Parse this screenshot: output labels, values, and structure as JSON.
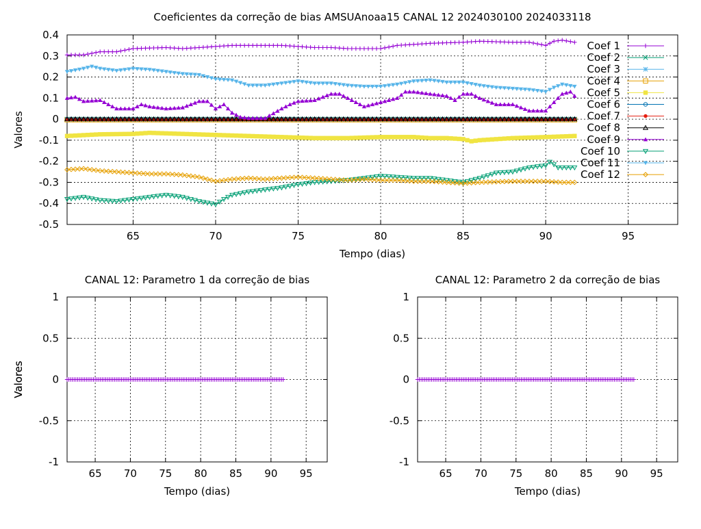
{
  "chart_data": [
    {
      "type": "line",
      "title": "Coeficientes da correção de bias AMSUAnoaa15 CANAL 12 2024030100 2024033118",
      "xlabel": "Tempo (dias)",
      "ylabel": "Valores",
      "xlim": [
        61,
        98
      ],
      "ylim": [
        -0.5,
        0.4
      ],
      "xticks": [
        65,
        70,
        75,
        80,
        85,
        90,
        95
      ],
      "yticks": [
        -0.5,
        -0.4,
        -0.3,
        -0.2,
        -0.1,
        0,
        0.1,
        0.2,
        0.3,
        0.4
      ],
      "ytick_labels": [
        "-0.5",
        "-0.4",
        "-0.3",
        "-0.2",
        "-0.1",
        "0",
        "0.1",
        "0.2",
        "0.3",
        "0.4"
      ],
      "grid": true,
      "legend_position": "right",
      "x_range": [
        61,
        91.75
      ],
      "x_step": 0.25,
      "series": [
        {
          "name": "Coef 1",
          "color": "#9400d3",
          "marker": "plus",
          "keypoints": [
            [
              61,
              0.305
            ],
            [
              62,
              0.305
            ],
            [
              63,
              0.32
            ],
            [
              64,
              0.32
            ],
            [
              65,
              0.335
            ],
            [
              67,
              0.34
            ],
            [
              68,
              0.335
            ],
            [
              70,
              0.345
            ],
            [
              71,
              0.35
            ],
            [
              73,
              0.35
            ],
            [
              74,
              0.35
            ],
            [
              75,
              0.345
            ],
            [
              76,
              0.34
            ],
            [
              77,
              0.34
            ],
            [
              78,
              0.335
            ],
            [
              80,
              0.335
            ],
            [
              81,
              0.35
            ],
            [
              82,
              0.355
            ],
            [
              83,
              0.36
            ],
            [
              85,
              0.365
            ],
            [
              86,
              0.37
            ],
            [
              88,
              0.365
            ],
            [
              89,
              0.365
            ],
            [
              90,
              0.35
            ],
            [
              90.5,
              0.37
            ],
            [
              91,
              0.375
            ],
            [
              91.75,
              0.365
            ]
          ]
        },
        {
          "name": "Coef 2",
          "color": "#009e73",
          "marker": "x",
          "keypoints": [
            [
              61,
              0.0
            ],
            [
              91.75,
              0.0
            ]
          ]
        },
        {
          "name": "Coef 3",
          "color": "#56b4e9",
          "marker": "star",
          "keypoints": [
            [
              61,
              -0.002
            ],
            [
              91.75,
              -0.002
            ]
          ]
        },
        {
          "name": "Coef 4",
          "color": "#e69f00",
          "marker": "square-open",
          "keypoints": [
            [
              61,
              -0.003
            ],
            [
              91.75,
              -0.003
            ]
          ]
        },
        {
          "name": "Coef 5",
          "color": "#f0e442",
          "marker": "square-filled",
          "keypoints": [
            [
              61,
              -0.08
            ],
            [
              63,
              -0.072
            ],
            [
              65,
              -0.07
            ],
            [
              66,
              -0.065
            ],
            [
              68,
              -0.07
            ],
            [
              70,
              -0.075
            ],
            [
              72,
              -0.08
            ],
            [
              74,
              -0.085
            ],
            [
              76,
              -0.09
            ],
            [
              78,
              -0.09
            ],
            [
              80,
              -0.085
            ],
            [
              82,
              -0.085
            ],
            [
              83,
              -0.09
            ],
            [
              84,
              -0.09
            ],
            [
              85,
              -0.095
            ],
            [
              85.5,
              -0.105
            ],
            [
              86,
              -0.1
            ],
            [
              88,
              -0.09
            ],
            [
              90,
              -0.085
            ],
            [
              91.75,
              -0.08
            ]
          ]
        },
        {
          "name": "Coef 6",
          "color": "#0072b2",
          "marker": "circle-open",
          "keypoints": [
            [
              61,
              0.001
            ],
            [
              91.75,
              0.001
            ]
          ]
        },
        {
          "name": "Coef 7",
          "color": "#e51e10",
          "marker": "circle-filled",
          "keypoints": [
            [
              61,
              -0.001
            ],
            [
              91.75,
              -0.001
            ]
          ]
        },
        {
          "name": "Coef 8",
          "color": "#000000",
          "marker": "triangle-open",
          "keypoints": [
            [
              61,
              0.0
            ],
            [
              91.75,
              0.0
            ]
          ]
        },
        {
          "name": "Coef 9",
          "color": "#9400d3",
          "marker": "triangle-filled",
          "keypoints": [
            [
              61,
              0.1
            ],
            [
              61.5,
              0.105
            ],
            [
              62,
              0.085
            ],
            [
              63,
              0.09
            ],
            [
              63.5,
              0.07
            ],
            [
              64,
              0.05
            ],
            [
              65,
              0.05
            ],
            [
              65.5,
              0.07
            ],
            [
              66,
              0.06
            ],
            [
              67,
              0.05
            ],
            [
              68,
              0.055
            ],
            [
              69,
              0.085
            ],
            [
              69.5,
              0.085
            ],
            [
              70,
              0.05
            ],
            [
              70.5,
              0.07
            ],
            [
              71,
              0.03
            ],
            [
              71.5,
              0.01
            ],
            [
              72,
              0.005
            ],
            [
              73,
              0.005
            ],
            [
              74,
              0.05
            ],
            [
              74.5,
              0.07
            ],
            [
              75,
              0.085
            ],
            [
              76,
              0.09
            ],
            [
              77,
              0.12
            ],
            [
              77.5,
              0.12
            ],
            [
              78,
              0.1
            ],
            [
              79,
              0.06
            ],
            [
              80,
              0.08
            ],
            [
              81,
              0.1
            ],
            [
              81.5,
              0.13
            ],
            [
              82,
              0.13
            ],
            [
              83,
              0.12
            ],
            [
              84,
              0.11
            ],
            [
              84.5,
              0.09
            ],
            [
              85,
              0.12
            ],
            [
              85.5,
              0.12
            ],
            [
              86,
              0.1
            ],
            [
              87,
              0.07
            ],
            [
              88,
              0.07
            ],
            [
              89,
              0.04
            ],
            [
              90,
              0.04
            ],
            [
              90.5,
              0.08
            ],
            [
              91,
              0.12
            ],
            [
              91.5,
              0.13
            ],
            [
              91.75,
              0.11
            ]
          ]
        },
        {
          "name": "Coef 10",
          "color": "#009e73",
          "marker": "triangle-down-open",
          "keypoints": [
            [
              61,
              -0.38
            ],
            [
              62,
              -0.37
            ],
            [
              63,
              -0.385
            ],
            [
              64,
              -0.39
            ],
            [
              65,
              -0.38
            ],
            [
              66,
              -0.37
            ],
            [
              67,
              -0.36
            ],
            [
              68,
              -0.37
            ],
            [
              69,
              -0.39
            ],
            [
              70,
              -0.405
            ],
            [
              70.5,
              -0.38
            ],
            [
              71,
              -0.36
            ],
            [
              72,
              -0.345
            ],
            [
              73,
              -0.335
            ],
            [
              74,
              -0.325
            ],
            [
              75,
              -0.31
            ],
            [
              76,
              -0.3
            ],
            [
              77,
              -0.295
            ],
            [
              78,
              -0.29
            ],
            [
              79,
              -0.28
            ],
            [
              80,
              -0.27
            ],
            [
              81,
              -0.275
            ],
            [
              82,
              -0.28
            ],
            [
              83,
              -0.28
            ],
            [
              84,
              -0.29
            ],
            [
              85,
              -0.3
            ],
            [
              86,
              -0.28
            ],
            [
              87,
              -0.255
            ],
            [
              88,
              -0.25
            ],
            [
              89,
              -0.23
            ],
            [
              90,
              -0.22
            ],
            [
              90.3,
              -0.2
            ],
            [
              90.7,
              -0.23
            ],
            [
              91.75,
              -0.23
            ]
          ]
        },
        {
          "name": "Coef 11",
          "color": "#56b4e9",
          "marker": "triangle-down-filled",
          "keypoints": [
            [
              61,
              0.225
            ],
            [
              62,
              0.24
            ],
            [
              62.5,
              0.25
            ],
            [
              63,
              0.24
            ],
            [
              64,
              0.23
            ],
            [
              65,
              0.24
            ],
            [
              66,
              0.235
            ],
            [
              67,
              0.225
            ],
            [
              68,
              0.215
            ],
            [
              69,
              0.21
            ],
            [
              70,
              0.19
            ],
            [
              71,
              0.185
            ],
            [
              72,
              0.16
            ],
            [
              73,
              0.16
            ],
            [
              74,
              0.17
            ],
            [
              75,
              0.18
            ],
            [
              76,
              0.17
            ],
            [
              77,
              0.17
            ],
            [
              78,
              0.16
            ],
            [
              79,
              0.155
            ],
            [
              80,
              0.155
            ],
            [
              81,
              0.165
            ],
            [
              82,
              0.18
            ],
            [
              83,
              0.185
            ],
            [
              84,
              0.175
            ],
            [
              85,
              0.175
            ],
            [
              86,
              0.16
            ],
            [
              87,
              0.15
            ],
            [
              88,
              0.145
            ],
            [
              89,
              0.14
            ],
            [
              90,
              0.13
            ],
            [
              90.5,
              0.15
            ],
            [
              91,
              0.165
            ],
            [
              91.75,
              0.155
            ]
          ]
        },
        {
          "name": "Coef 12",
          "color": "#e69f00",
          "marker": "diamond-open",
          "keypoints": [
            [
              61,
              -0.24
            ],
            [
              62,
              -0.235
            ],
            [
              63,
              -0.245
            ],
            [
              64,
              -0.25
            ],
            [
              65,
              -0.255
            ],
            [
              66,
              -0.26
            ],
            [
              67,
              -0.26
            ],
            [
              68,
              -0.265
            ],
            [
              69,
              -0.275
            ],
            [
              70,
              -0.295
            ],
            [
              71,
              -0.285
            ],
            [
              72,
              -0.28
            ],
            [
              73,
              -0.285
            ],
            [
              74,
              -0.28
            ],
            [
              75,
              -0.275
            ],
            [
              76,
              -0.28
            ],
            [
              77,
              -0.285
            ],
            [
              78,
              -0.29
            ],
            [
              79,
              -0.285
            ],
            [
              80,
              -0.29
            ],
            [
              81,
              -0.29
            ],
            [
              82,
              -0.295
            ],
            [
              83,
              -0.295
            ],
            [
              84,
              -0.3
            ],
            [
              85,
              -0.305
            ],
            [
              86,
              -0.3
            ],
            [
              88,
              -0.295
            ],
            [
              90,
              -0.295
            ],
            [
              91,
              -0.3
            ],
            [
              91.75,
              -0.3
            ]
          ]
        }
      ]
    },
    {
      "type": "line",
      "title": "CANAL 12: Parametro 1 da correção de bias",
      "xlabel": "Tempo (dias)",
      "ylabel": "Valores",
      "xlim": [
        61,
        98
      ],
      "ylim": [
        -1,
        1
      ],
      "xticks": [
        65,
        70,
        75,
        80,
        85,
        90,
        95
      ],
      "yticks": [
        -1,
        -0.5,
        0,
        0.5,
        1
      ],
      "ytick_labels": [
        "-1",
        "-0.5",
        "0",
        "0.5",
        "1"
      ],
      "grid": true,
      "x_range": [
        61,
        91.75
      ],
      "x_step": 0.25,
      "series": [
        {
          "color": "#9400d3",
          "marker": "plus",
          "keypoints": [
            [
              61,
              0
            ],
            [
              91.75,
              0
            ]
          ]
        }
      ]
    },
    {
      "type": "line",
      "title": "CANAL 12: Parametro 2 da correção de bias",
      "xlabel": "Tempo (dias)",
      "ylabel": "Valores",
      "xlim": [
        61,
        98
      ],
      "ylim": [
        -1,
        1
      ],
      "xticks": [
        65,
        70,
        75,
        80,
        85,
        90,
        95
      ],
      "yticks": [
        -1,
        -0.5,
        0,
        0.5,
        1
      ],
      "ytick_labels": [
        "-1",
        "-0.5",
        "0",
        "0.5",
        "1"
      ],
      "grid": true,
      "x_range": [
        61,
        91.75
      ],
      "x_step": 0.25,
      "series": [
        {
          "color": "#9400d3",
          "marker": "plus",
          "keypoints": [
            [
              61,
              0
            ],
            [
              91.75,
              0
            ]
          ]
        }
      ]
    }
  ]
}
